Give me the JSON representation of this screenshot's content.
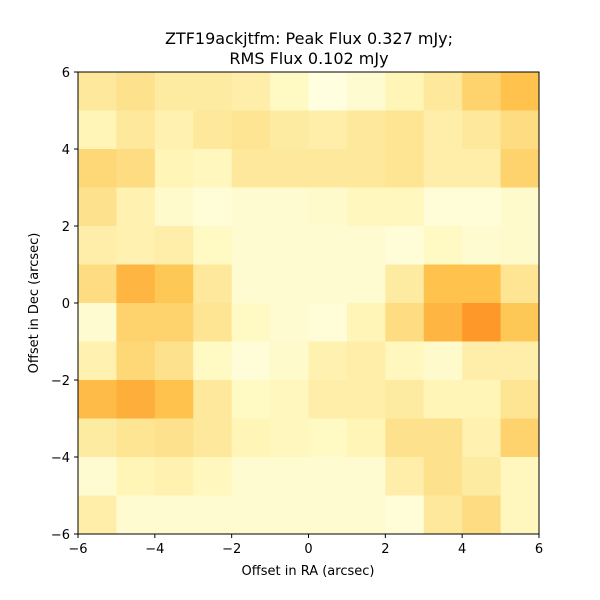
{
  "chart_data": {
    "type": "heatmap",
    "title_line1": "ZTF19ackjtfm: Peak Flux 0.327 mJy;",
    "title_line2": "RMS Flux 0.102 mJy",
    "xlabel": "Offset in RA (arcsec)",
    "ylabel": "Offset in Dec (arcsec)",
    "xlim": [
      -6,
      6
    ],
    "ylim": [
      -6,
      6
    ],
    "xticks": [
      -6,
      -4,
      -2,
      0,
      2,
      4,
      6
    ],
    "yticks": [
      -6,
      -4,
      -2,
      0,
      2,
      4,
      6
    ],
    "xtick_labels": [
      "−6",
      "−4",
      "−2",
      "0",
      "2",
      "4",
      "6"
    ],
    "ytick_labels": [
      "−6",
      "−4",
      "−2",
      "0",
      "2",
      "4",
      "6"
    ],
    "colormap": "YlOrBr",
    "grid": false,
    "rows_top_to_bottom": [
      [
        0.22,
        0.26,
        0.2,
        0.2,
        0.18,
        0.1,
        0.02,
        0.06,
        0.14,
        0.22,
        0.32,
        0.38
      ],
      [
        0.14,
        0.22,
        0.16,
        0.22,
        0.24,
        0.2,
        0.18,
        0.22,
        0.24,
        0.18,
        0.22,
        0.28
      ],
      [
        0.3,
        0.28,
        0.14,
        0.12,
        0.22,
        0.22,
        0.22,
        0.22,
        0.24,
        0.18,
        0.18,
        0.32
      ],
      [
        0.26,
        0.16,
        0.08,
        0.04,
        0.06,
        0.06,
        0.08,
        0.12,
        0.12,
        0.04,
        0.04,
        0.08
      ],
      [
        0.18,
        0.16,
        0.18,
        0.1,
        0.06,
        0.06,
        0.06,
        0.06,
        0.04,
        0.1,
        0.06,
        0.08
      ],
      [
        0.28,
        0.42,
        0.36,
        0.22,
        0.06,
        0.06,
        0.06,
        0.06,
        0.2,
        0.38,
        0.38,
        0.24
      ],
      [
        0.06,
        0.32,
        0.32,
        0.24,
        0.1,
        0.06,
        0.04,
        0.14,
        0.28,
        0.42,
        0.5,
        0.36
      ],
      [
        0.16,
        0.3,
        0.26,
        0.1,
        0.04,
        0.08,
        0.16,
        0.18,
        0.12,
        0.08,
        0.18,
        0.18
      ],
      [
        0.4,
        0.44,
        0.38,
        0.22,
        0.1,
        0.12,
        0.18,
        0.18,
        0.2,
        0.14,
        0.14,
        0.24
      ],
      [
        0.2,
        0.24,
        0.26,
        0.22,
        0.14,
        0.12,
        0.1,
        0.14,
        0.26,
        0.26,
        0.16,
        0.32
      ],
      [
        0.06,
        0.14,
        0.16,
        0.12,
        0.06,
        0.06,
        0.06,
        0.06,
        0.18,
        0.26,
        0.2,
        0.12
      ],
      [
        0.18,
        0.06,
        0.06,
        0.06,
        0.06,
        0.06,
        0.06,
        0.06,
        0.04,
        0.22,
        0.28,
        0.12
      ]
    ]
  }
}
